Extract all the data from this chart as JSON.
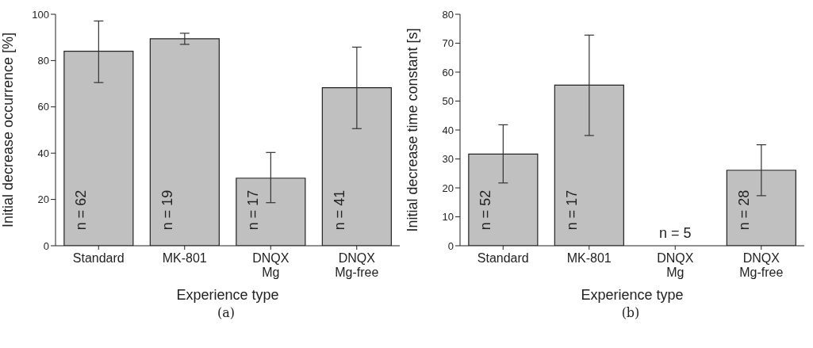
{
  "chart_data": [
    {
      "type": "bar",
      "categories": [
        "Standard",
        "MK-801",
        "DNQX\nMg",
        "DNQX\nMg-free"
      ],
      "values": [
        84,
        89.4,
        29.2,
        68.3
      ],
      "color": "#c0c0c0",
      "errors": [
        [
          70.5,
          97.1
        ],
        [
          87.0,
          91.8
        ],
        [
          18.6,
          40.3
        ],
        [
          50.6,
          85.8
        ]
      ],
      "xlabel": "Experience type",
      "ylabel": "Initial decrease occurrence [%]",
      "ylim": [
        0,
        100
      ],
      "yticks": [
        0,
        20,
        40,
        60,
        80,
        100
      ],
      "grid": false,
      "annotations": [
        "n = 62",
        "n = 19",
        "n = 17",
        "n = 41",
        "(a)"
      ]
    },
    {
      "type": "bar",
      "categories": [
        "Standard",
        "MK-801",
        "DNQX\nMg",
        "DNQX\nMg-free"
      ],
      "values": [
        31.7,
        55.5,
        null,
        26.1
      ],
      "color": "#c0c0c0",
      "errors": [
        [
          21.7,
          41.8
        ],
        [
          38.1,
          72.8
        ],
        null,
        [
          17.3,
          34.9
        ]
      ],
      "xlabel": "Experience type",
      "ylabel": "Initial decrease time constant [s]",
      "ylim": [
        0,
        80
      ],
      "yticks": [
        0,
        10,
        20,
        30,
        40,
        50,
        60,
        70,
        80
      ],
      "grid": false,
      "annotations": [
        "n = 52",
        "n = 17",
        "n = 5",
        "n = 28",
        "(b)"
      ]
    }
  ]
}
